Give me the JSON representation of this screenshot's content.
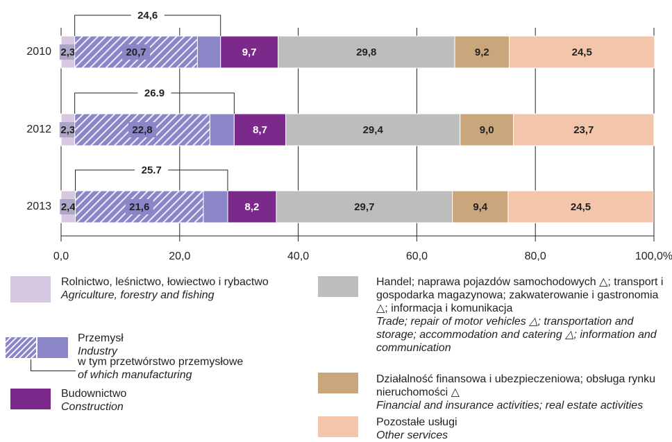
{
  "chart_data": {
    "type": "stacked-bar-horizontal",
    "categories": [
      "2010",
      "2012",
      "2013"
    ],
    "series": [
      {
        "name": "Rolnictwo, leśnictwo, łowiectwo i rybactwo",
        "name_en": "Agriculture, forestry and fishing",
        "color": "#d6c8e0",
        "values": [
          2.3,
          2.3,
          2.4
        ],
        "value_labels": [
          "2,3",
          "2,3",
          "2,4"
        ]
      },
      {
        "name": "w tym przetwórstwo przemysłowe",
        "name_en": "of which manufacturing",
        "color": "#8b86c8",
        "hatched": true,
        "values": [
          20.7,
          22.8,
          21.6
        ],
        "value_labels": [
          "20,7",
          "22,8",
          "21,6"
        ]
      },
      {
        "name": "Przemysł",
        "name_en": "Industry",
        "color": "#8b86c8",
        "values": [
          3.9,
          4.1,
          4.1
        ]
      },
      {
        "name": "Budownictwo",
        "name_en": "Construction",
        "color": "#7b2a8c",
        "values": [
          9.7,
          8.7,
          8.2
        ],
        "value_labels": [
          "9,7",
          "8,7",
          "8,2"
        ]
      },
      {
        "name": "Handel; naprawa pojazdów samochodowych △; transport i gospodarka magazynowa; zakwaterowanie i gastronomia △; informacja i komunikacja",
        "name_en": "Trade; repair of motor vehicles △; transportation and storage; accommodation and catering △; information and communication",
        "color": "#bdbdbd",
        "values": [
          29.8,
          29.4,
          29.7
        ],
        "value_labels": [
          "29,8",
          "29,4",
          "29,7"
        ]
      },
      {
        "name": "Działalność finansowa i ubezpieczeniowa; obsługa rynku nieruchomości △",
        "name_en": "Financial and insurance activities; real estate activities",
        "color": "#c9a67c",
        "values": [
          9.2,
          9.0,
          9.4
        ],
        "value_labels": [
          "9,2",
          "9,0",
          "9,4"
        ]
      },
      {
        "name": "Pozostałe usługi",
        "name_en": "Other services",
        "color": "#f3c5aa",
        "values": [
          24.5,
          23.7,
          24.5
        ],
        "value_labels": [
          "24,5",
          "23,7",
          "24,5"
        ]
      }
    ],
    "industry_total": {
      "values": [
        24.6,
        26.9,
        25.7
      ],
      "value_labels": [
        "24,6",
        "26.9",
        "25.7"
      ]
    },
    "xlim": [
      0,
      100
    ],
    "xticks": [
      {
        "value": 0,
        "label": "0,0"
      },
      {
        "value": 20,
        "label": "20,0"
      },
      {
        "value": 40,
        "label": "40,0"
      },
      {
        "value": 60,
        "label": "60,0"
      },
      {
        "value": 80,
        "label": "80,0"
      },
      {
        "value": 100,
        "label": "100,0%"
      }
    ],
    "grid": true
  }
}
